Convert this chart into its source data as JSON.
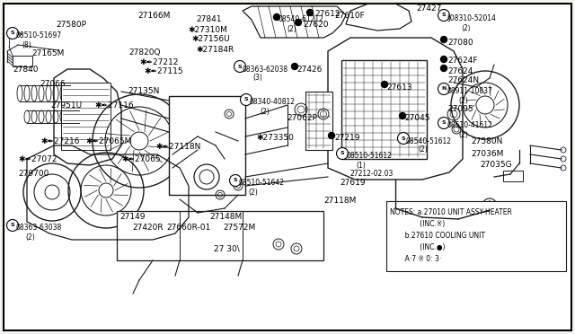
{
  "bg_color": "#f5f5f0",
  "border_color": "#000000",
  "line_color": "#1a1a1a",
  "text_color": "#000000",
  "notes_lines": [
    "NOTES: a.27010 UNIT ASSY-HEATER",
    "              (INC.※)",
    "       b.27610 COOLING UNIT",
    "              (INC.●)",
    "       A·7 ※ 0: 3·"
  ],
  "font_size": 6.5,
  "title_font_size": 7.0,
  "figsize": [
    6.4,
    3.72
  ],
  "dpi": 100
}
